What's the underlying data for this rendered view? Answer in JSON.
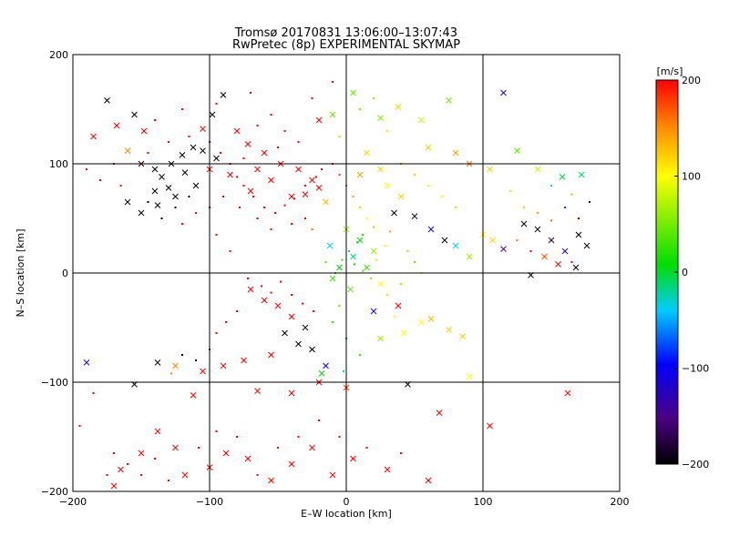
{
  "title_line1": "Tromsø 20170831 13:06:00–13:07:43",
  "title_line2": "RwPretec (8p) EXPERIMENTAL SKYMAP",
  "chart_data": {
    "type": "scatter",
    "xlabel": "E–W location [km]",
    "ylabel": "N–S location [km]",
    "xlim": [
      -200,
      200
    ],
    "ylim": [
      -200,
      200
    ],
    "xticks": [
      -200,
      -100,
      0,
      100,
      200
    ],
    "yticks": [
      -200,
      -100,
      0,
      100,
      200
    ],
    "gridlines": [
      -100,
      0,
      100
    ],
    "colorbar": {
      "label": "[m/s]",
      "range": [
        -200,
        200
      ],
      "ticks": [
        -200,
        -100,
        0,
        100,
        200
      ],
      "colormap": "rainbow (black → purple → blue → cyan → green → yellow → red)"
    },
    "markers": {
      "small": "dot",
      "large": "x"
    },
    "points": [
      [
        -185,
        125,
        200,
        "x"
      ],
      [
        -175,
        158,
        -200,
        "x"
      ],
      [
        -168,
        135,
        200,
        "x"
      ],
      [
        -155,
        145,
        -200,
        "x"
      ],
      [
        -148,
        130,
        200,
        "x"
      ],
      [
        -160,
        112,
        150,
        "x"
      ],
      [
        -150,
        100,
        -200,
        "x"
      ],
      [
        -140,
        95,
        -200,
        "x"
      ],
      [
        -135,
        88,
        -200,
        "x"
      ],
      [
        -128,
        100,
        -200,
        "x"
      ],
      [
        -120,
        108,
        -200,
        "x"
      ],
      [
        -112,
        115,
        -200,
        "x"
      ],
      [
        -105,
        112,
        -200,
        "x"
      ],
      [
        -95,
        105,
        -200,
        "x"
      ],
      [
        -118,
        92,
        -200,
        "x"
      ],
      [
        -130,
        78,
        -200,
        "x"
      ],
      [
        -140,
        75,
        -200,
        "x"
      ],
      [
        -125,
        70,
        -200,
        "x"
      ],
      [
        -138,
        62,
        -200,
        "x"
      ],
      [
        -160,
        65,
        -200,
        "x"
      ],
      [
        -150,
        55,
        -200,
        "x"
      ],
      [
        -110,
        80,
        -200,
        "x"
      ],
      [
        -100,
        95,
        200,
        "x"
      ],
      [
        -98,
        145,
        -200,
        "x"
      ],
      [
        -90,
        163,
        -200,
        "x"
      ],
      [
        -105,
        132,
        200,
        "x"
      ],
      [
        -80,
        130,
        200,
        "x"
      ],
      [
        -72,
        118,
        200,
        "x"
      ],
      [
        -60,
        110,
        200,
        "x"
      ],
      [
        -48,
        100,
        200,
        "x"
      ],
      [
        -35,
        95,
        200,
        "x"
      ],
      [
        -25,
        85,
        200,
        "x"
      ],
      [
        -20,
        78,
        200,
        "x"
      ],
      [
        -15,
        65,
        130,
        "x"
      ],
      [
        -30,
        72,
        200,
        "x"
      ],
      [
        -40,
        70,
        200,
        "x"
      ],
      [
        -55,
        85,
        200,
        "x"
      ],
      [
        -65,
        95,
        200,
        "x"
      ],
      [
        -85,
        90,
        200,
        "x"
      ],
      [
        -70,
        75,
        200,
        "x"
      ],
      [
        -20,
        140,
        200,
        "x"
      ],
      [
        -10,
        145,
        40,
        "x"
      ],
      [
        5,
        165,
        40,
        "x"
      ],
      [
        25,
        142,
        50,
        "x"
      ],
      [
        38,
        152,
        120,
        "x"
      ],
      [
        55,
        140,
        80,
        "x"
      ],
      [
        75,
        158,
        40,
        "x"
      ],
      [
        60,
        115,
        120,
        "x"
      ],
      [
        80,
        110,
        140,
        "x"
      ],
      [
        90,
        100,
        160,
        "x"
      ],
      [
        105,
        95,
        120,
        "x"
      ],
      [
        115,
        165,
        -120,
        "x"
      ],
      [
        125,
        112,
        40,
        "x"
      ],
      [
        140,
        95,
        80,
        "x"
      ],
      [
        158,
        88,
        -10,
        "x"
      ],
      [
        172,
        90,
        -20,
        "x"
      ],
      [
        15,
        110,
        120,
        "x"
      ],
      [
        25,
        95,
        120,
        "x"
      ],
      [
        10,
        90,
        140,
        "x"
      ],
      [
        30,
        80,
        100,
        "x"
      ],
      [
        40,
        70,
        120,
        "x"
      ],
      [
        35,
        55,
        -200,
        "x"
      ],
      [
        50,
        52,
        -180,
        "x"
      ],
      [
        62,
        40,
        -120,
        "x"
      ],
      [
        72,
        30,
        -200,
        "x"
      ],
      [
        80,
        25,
        -40,
        "x"
      ],
      [
        90,
        15,
        60,
        "x"
      ],
      [
        100,
        35,
        100,
        "x"
      ],
      [
        107,
        30,
        120,
        "x"
      ],
      [
        115,
        22,
        -150,
        "x"
      ],
      [
        130,
        45,
        -200,
        "x"
      ],
      [
        140,
        40,
        -200,
        "x"
      ],
      [
        150,
        30,
        -180,
        "x"
      ],
      [
        160,
        20,
        -120,
        "x"
      ],
      [
        170,
        35,
        -200,
        "x"
      ],
      [
        176,
        25,
        -200,
        "x"
      ],
      [
        145,
        15,
        170,
        "x"
      ],
      [
        168,
        5,
        -200,
        "x"
      ],
      [
        155,
        8,
        200,
        "x"
      ],
      [
        135,
        -2,
        -200,
        "x"
      ],
      [
        -70,
        -15,
        200,
        "x"
      ],
      [
        -60,
        -25,
        200,
        "x"
      ],
      [
        -50,
        -30,
        200,
        "x"
      ],
      [
        -40,
        -40,
        200,
        "x"
      ],
      [
        -30,
        -50,
        -200,
        "x"
      ],
      [
        -45,
        -55,
        -200,
        "x"
      ],
      [
        -35,
        -65,
        -200,
        "x"
      ],
      [
        -25,
        -70,
        -200,
        "x"
      ],
      [
        -55,
        -75,
        200,
        "x"
      ],
      [
        -75,
        -80,
        200,
        "x"
      ],
      [
        -90,
        -85,
        200,
        "x"
      ],
      [
        -105,
        -90,
        200,
        "x"
      ],
      [
        -125,
        -85,
        150,
        "x"
      ],
      [
        -138,
        -82,
        -200,
        "x"
      ],
      [
        -190,
        -82,
        -120,
        "x"
      ],
      [
        -155,
        -102,
        -200,
        "x"
      ],
      [
        -112,
        -112,
        200,
        "x"
      ],
      [
        -65,
        -108,
        200,
        "x"
      ],
      [
        -40,
        -110,
        200,
        "x"
      ],
      [
        -20,
        -100,
        200,
        "x"
      ],
      [
        -18,
        -92,
        0,
        "x"
      ],
      [
        -15,
        -85,
        -120,
        "x"
      ],
      [
        0,
        -105,
        180,
        "x"
      ],
      [
        45,
        -102,
        -200,
        "x"
      ],
      [
        68,
        -128,
        200,
        "x"
      ],
      [
        105,
        -140,
        200,
        "x"
      ],
      [
        162,
        -110,
        200,
        "x"
      ],
      [
        55,
        -45,
        100,
        "x"
      ],
      [
        62,
        -42,
        130,
        "x"
      ],
      [
        75,
        -52,
        120,
        "x"
      ],
      [
        85,
        -58,
        120,
        "x"
      ],
      [
        90,
        -95,
        100,
        "x"
      ],
      [
        20,
        -35,
        -120,
        "x"
      ],
      [
        38,
        -30,
        200,
        "x"
      ],
      [
        42,
        -55,
        100,
        "x"
      ],
      [
        25,
        -60,
        60,
        "x"
      ],
      [
        -165,
        -180,
        200,
        "x"
      ],
      [
        -150,
        -165,
        200,
        "x"
      ],
      [
        -138,
        -145,
        200,
        "x"
      ],
      [
        -125,
        -160,
        200,
        "x"
      ],
      [
        -118,
        -185,
        200,
        "x"
      ],
      [
        -100,
        -178,
        200,
        "x"
      ],
      [
        -88,
        -165,
        200,
        "x"
      ],
      [
        -72,
        -170,
        200,
        "x"
      ],
      [
        -55,
        -190,
        200,
        "x"
      ],
      [
        -40,
        -175,
        200,
        "x"
      ],
      [
        -25,
        -160,
        200,
        "x"
      ],
      [
        -10,
        -185,
        200,
        "x"
      ],
      [
        5,
        -170,
        200,
        "x"
      ],
      [
        30,
        -180,
        200,
        "x"
      ],
      [
        60,
        -190,
        200,
        "x"
      ],
      [
        -170,
        -195,
        200,
        "x"
      ],
      [
        10,
        30,
        0,
        "x"
      ],
      [
        5,
        15,
        -20,
        "x"
      ],
      [
        15,
        5,
        20,
        "x"
      ],
      [
        -5,
        5,
        0,
        "x"
      ],
      [
        20,
        20,
        60,
        "x"
      ],
      [
        -10,
        -5,
        20,
        "x"
      ],
      [
        3,
        -15,
        40,
        "x"
      ],
      [
        25,
        -10,
        100,
        "x"
      ],
      [
        0,
        40,
        60,
        "x"
      ],
      [
        -12,
        25,
        -40,
        "x"
      ],
      [
        -150,
        100,
        200,
        "dot"
      ],
      [
        -145,
        110,
        200,
        "dot"
      ],
      [
        -130,
        120,
        200,
        "dot"
      ],
      [
        -115,
        125,
        200,
        "dot"
      ],
      [
        -100,
        120,
        200,
        "dot"
      ],
      [
        -92,
        110,
        200,
        "dot"
      ],
      [
        -85,
        100,
        200,
        "dot"
      ],
      [
        -80,
        88,
        200,
        "dot"
      ],
      [
        -75,
        80,
        200,
        "dot"
      ],
      [
        -68,
        70,
        200,
        "dot"
      ],
      [
        -60,
        60,
        200,
        "dot"
      ],
      [
        -52,
        55,
        200,
        "dot"
      ],
      [
        -45,
        62,
        200,
        "dot"
      ],
      [
        -38,
        68,
        200,
        "dot"
      ],
      [
        -30,
        80,
        200,
        "dot"
      ],
      [
        -22,
        88,
        200,
        "dot"
      ],
      [
        -18,
        95,
        200,
        "dot"
      ],
      [
        -10,
        100,
        200,
        "dot"
      ],
      [
        -5,
        90,
        180,
        "dot"
      ],
      [
        0,
        80,
        160,
        "dot"
      ],
      [
        5,
        70,
        140,
        "dot"
      ],
      [
        10,
        60,
        120,
        "dot"
      ],
      [
        15,
        50,
        100,
        "dot"
      ],
      [
        20,
        42,
        60,
        "dot"
      ],
      [
        12,
        35,
        20,
        "dot"
      ],
      [
        8,
        28,
        0,
        "dot"
      ],
      [
        2,
        20,
        -20,
        "dot"
      ],
      [
        -3,
        12,
        20,
        "dot"
      ],
      [
        6,
        8,
        0,
        "dot"
      ],
      [
        12,
        2,
        40,
        "dot"
      ],
      [
        18,
        -5,
        60,
        "dot"
      ],
      [
        -8,
        0,
        20,
        "dot"
      ],
      [
        -15,
        10,
        40,
        "dot"
      ],
      [
        22,
        12,
        80,
        "dot"
      ],
      [
        28,
        25,
        100,
        "dot"
      ],
      [
        32,
        38,
        140,
        "dot"
      ],
      [
        -25,
        40,
        160,
        "dot"
      ],
      [
        -30,
        50,
        200,
        "dot"
      ],
      [
        -40,
        45,
        200,
        "dot"
      ],
      [
        -55,
        40,
        200,
        "dot"
      ],
      [
        -65,
        50,
        200,
        "dot"
      ],
      [
        -78,
        60,
        200,
        "dot"
      ],
      [
        -90,
        70,
        200,
        "dot"
      ],
      [
        -100,
        60,
        200,
        "dot"
      ],
      [
        -110,
        55,
        200,
        "dot"
      ],
      [
        -120,
        45,
        200,
        "dot"
      ],
      [
        -95,
        35,
        200,
        "dot"
      ],
      [
        -85,
        20,
        200,
        "dot"
      ],
      [
        -72,
        -5,
        200,
        "dot"
      ],
      [
        -62,
        -12,
        200,
        "dot"
      ],
      [
        -55,
        -18,
        200,
        "dot"
      ],
      [
        -48,
        -8,
        200,
        "dot"
      ],
      [
        -40,
        -20,
        200,
        "dot"
      ],
      [
        -32,
        -28,
        200,
        "dot"
      ],
      [
        -24,
        -35,
        200,
        "dot"
      ],
      [
        -80,
        -35,
        200,
        "dot"
      ],
      [
        -88,
        -45,
        200,
        "dot"
      ],
      [
        -95,
        -55,
        200,
        "dot"
      ],
      [
        -100,
        -70,
        200,
        "dot"
      ],
      [
        -110,
        -80,
        -200,
        "dot"
      ],
      [
        -120,
        -75,
        -200,
        "dot"
      ],
      [
        -128,
        -92,
        150,
        "dot"
      ],
      [
        -170,
        -165,
        200,
        "dot"
      ],
      [
        -160,
        -175,
        200,
        "dot"
      ],
      [
        -150,
        -185,
        200,
        "dot"
      ],
      [
        -140,
        -170,
        200,
        "dot"
      ],
      [
        -130,
        -190,
        200,
        "dot"
      ],
      [
        -108,
        -160,
        200,
        "dot"
      ],
      [
        -95,
        -145,
        200,
        "dot"
      ],
      [
        -80,
        -150,
        200,
        "dot"
      ],
      [
        -65,
        -185,
        200,
        "dot"
      ],
      [
        -50,
        -160,
        200,
        "dot"
      ],
      [
        -35,
        -150,
        200,
        "dot"
      ],
      [
        -20,
        -135,
        200,
        "dot"
      ],
      [
        -5,
        -150,
        200,
        "dot"
      ],
      [
        15,
        -160,
        200,
        "dot"
      ],
      [
        40,
        -165,
        200,
        "dot"
      ],
      [
        -195,
        -140,
        200,
        "dot"
      ],
      [
        -185,
        -110,
        200,
        "dot"
      ],
      [
        -175,
        -185,
        200,
        "dot"
      ],
      [
        40,
        100,
        150,
        "dot"
      ],
      [
        50,
        90,
        130,
        "dot"
      ],
      [
        60,
        80,
        110,
        "dot"
      ],
      [
        70,
        70,
        100,
        "dot"
      ],
      [
        80,
        60,
        120,
        "dot"
      ],
      [
        45,
        20,
        60,
        "dot"
      ],
      [
        50,
        10,
        40,
        "dot"
      ],
      [
        55,
        0,
        80,
        "dot"
      ],
      [
        40,
        -10,
        60,
        "dot"
      ],
      [
        30,
        -20,
        80,
        "dot"
      ],
      [
        35,
        -40,
        100,
        "dot"
      ],
      [
        -5,
        -30,
        40,
        "dot"
      ],
      [
        -10,
        -45,
        20,
        "dot"
      ],
      [
        0,
        -60,
        0,
        "dot"
      ],
      [
        10,
        -75,
        20,
        "dot"
      ],
      [
        -2,
        -90,
        -40,
        "dot"
      ],
      [
        130,
        60,
        120,
        "dot"
      ],
      [
        140,
        55,
        140,
        "dot"
      ],
      [
        150,
        48,
        160,
        "dot"
      ],
      [
        160,
        60,
        -80,
        "dot"
      ],
      [
        170,
        50,
        -120,
        "dot"
      ],
      [
        125,
        30,
        160,
        "dot"
      ],
      [
        135,
        20,
        200,
        "dot"
      ],
      [
        165,
        10,
        200,
        "dot"
      ],
      [
        120,
        75,
        80,
        "dot"
      ],
      [
        150,
        80,
        -40,
        "dot"
      ],
      [
        165,
        72,
        40,
        "dot"
      ],
      [
        178,
        65,
        -160,
        "dot"
      ],
      [
        -140,
        140,
        200,
        "dot"
      ],
      [
        -120,
        150,
        200,
        "dot"
      ],
      [
        -95,
        155,
        200,
        "dot"
      ],
      [
        -70,
        165,
        200,
        "dot"
      ],
      [
        -55,
        145,
        200,
        "dot"
      ],
      [
        -45,
        130,
        200,
        "dot"
      ],
      [
        -35,
        120,
        200,
        "dot"
      ],
      [
        -65,
        135,
        200,
        "dot"
      ],
      [
        -25,
        160,
        200,
        "dot"
      ],
      [
        -10,
        175,
        200,
        "dot"
      ],
      [
        20,
        160,
        60,
        "dot"
      ],
      [
        10,
        150,
        40,
        "dot"
      ],
      [
        30,
        130,
        80,
        "dot"
      ],
      [
        -5,
        125,
        120,
        "dot"
      ],
      [
        -50,
        115,
        200,
        "dot"
      ],
      [
        -75,
        105,
        200,
        "dot"
      ],
      [
        -190,
        95,
        200,
        "dot"
      ],
      [
        -180,
        85,
        200,
        "dot"
      ],
      [
        -170,
        100,
        200,
        "dot"
      ],
      [
        -165,
        80,
        200,
        "dot"
      ],
      [
        -145,
        65,
        -200,
        "dot"
      ],
      [
        -135,
        50,
        -200,
        "dot"
      ],
      [
        -125,
        60,
        -200,
        "dot"
      ],
      [
        -115,
        70,
        -200,
        "dot"
      ]
    ]
  },
  "colors": {
    "axis": "#000000",
    "background": "#ffffff"
  }
}
